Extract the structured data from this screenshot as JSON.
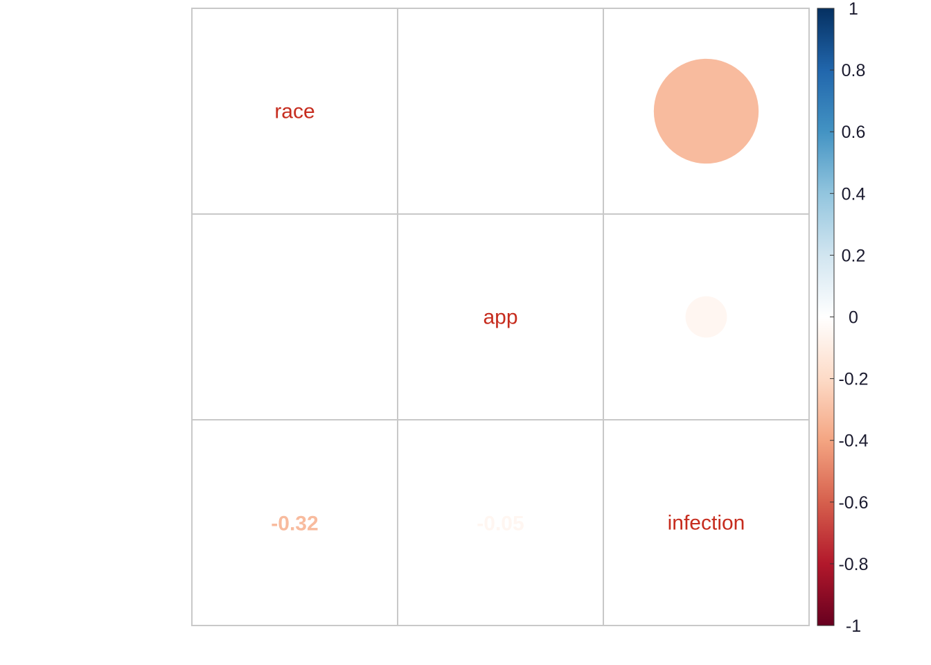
{
  "chart_data": {
    "type": "heatmap",
    "variables": [
      "race",
      "app",
      "infection"
    ],
    "matrix": [
      [
        1,
        0,
        -0.32
      ],
      [
        0,
        1,
        -0.05
      ],
      [
        -0.32,
        -0.05,
        1
      ]
    ],
    "upper_labels": {
      "values": [
        {
          "row": 0,
          "col": 2,
          "value": -0.32
        },
        {
          "row": 1,
          "col": 2,
          "value": -0.05
        }
      ]
    },
    "lower_labels": {
      "values": [
        {
          "row": 2,
          "col": 0,
          "value": -0.32,
          "text": "-0.32"
        },
        {
          "row": 2,
          "col": 1,
          "value": -0.05,
          "text": "-0.05"
        }
      ]
    },
    "diagonal_labels": [
      "race",
      "app",
      "infection"
    ],
    "colorbar": {
      "range": [
        -1,
        1
      ],
      "ticks": [
        "1",
        "0.8",
        "0.6",
        "0.4",
        "0.2",
        "0",
        "-0.2",
        "-0.4",
        "-0.6",
        "-0.8",
        "-1"
      ],
      "tick_values": [
        1,
        0.8,
        0.6,
        0.4,
        0.2,
        0,
        -0.2,
        -0.4,
        -0.6,
        -0.8,
        -1
      ],
      "stops": [
        {
          "value": -1,
          "color": "#67001F"
        },
        {
          "value": -0.8,
          "color": "#B2182B"
        },
        {
          "value": -0.6,
          "color": "#D6604D"
        },
        {
          "value": -0.4,
          "color": "#F4A582"
        },
        {
          "value": -0.2,
          "color": "#FDDBC7"
        },
        {
          "value": 0,
          "color": "#FFFFFF"
        },
        {
          "value": 0.2,
          "color": "#D1E5F0"
        },
        {
          "value": 0.4,
          "color": "#92C5DE"
        },
        {
          "value": 0.6,
          "color": "#4393C3"
        },
        {
          "value": 0.8,
          "color": "#2166AC"
        },
        {
          "value": 1,
          "color": "#053061"
        }
      ]
    },
    "colors": {
      "grid": "#C8C8C8",
      "diag_text": "#C62C1E",
      "tick_text": "#1A1A2E"
    }
  }
}
